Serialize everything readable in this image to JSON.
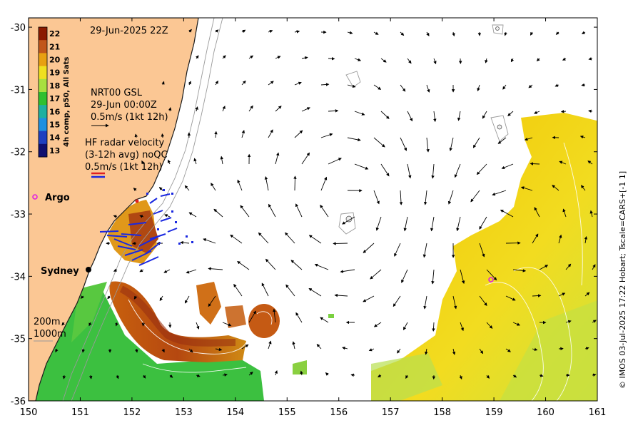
{
  "timestamp": "29-Jun-2025 22Z",
  "colorbar": {
    "title": "4h comp, p50, All Sats",
    "ticks": [
      "22",
      "21",
      "20",
      "19",
      "18",
      "17",
      "16",
      "15",
      "14",
      "13"
    ],
    "colors": [
      "#8b1a00",
      "#c1561a",
      "#e8a012",
      "#f0e020",
      "#a8e040",
      "#30c030",
      "#20b0a0",
      "#2090e0",
      "#2040c0",
      "#101070"
    ]
  },
  "legend_gsl": {
    "title": "NRT00 GSL",
    "time": "29-Jun 00:00Z",
    "scale": "0.5m/s (1kt 12h)"
  },
  "legend_hf": {
    "title": "HF radar velocity",
    "subtitle": "(3-12h avg) noQC",
    "scale": "0.5m/s (1kt 12h)"
  },
  "places": [
    {
      "name": "Argo",
      "lon": 150.12,
      "lat": -32.75
    },
    {
      "name": "Sydney",
      "lon": 151.2,
      "lat": -33.88
    }
  ],
  "argo_floats": [
    {
      "lon": 150.12,
      "lat": -32.75
    },
    {
      "lon": 158.92,
      "lat": -34.05
    }
  ],
  "depth_legend": {
    "contour_1": "200m",
    "contour_2": "1000m"
  },
  "credit": "© IMOS 03-Jul-2025 17:22 Hobart; Tscale=CARS+[-1 1]",
  "axes": {
    "lon_range": [
      150,
      161
    ],
    "lat_range": [
      -36,
      -29.85
    ],
    "x_ticks": [
      "150",
      "151",
      "152",
      "153",
      "154",
      "155",
      "156",
      "157",
      "158",
      "159",
      "160",
      "161"
    ],
    "y_ticks": [
      "-30",
      "-31",
      "-32",
      "-33",
      "-34",
      "-35",
      "-36"
    ]
  },
  "colors": {
    "land": "#fbc794",
    "coast": "#1a1a1a",
    "hf_red": "#e02020",
    "hf_blue": "#1a28e0",
    "argo": "#e020e0"
  }
}
